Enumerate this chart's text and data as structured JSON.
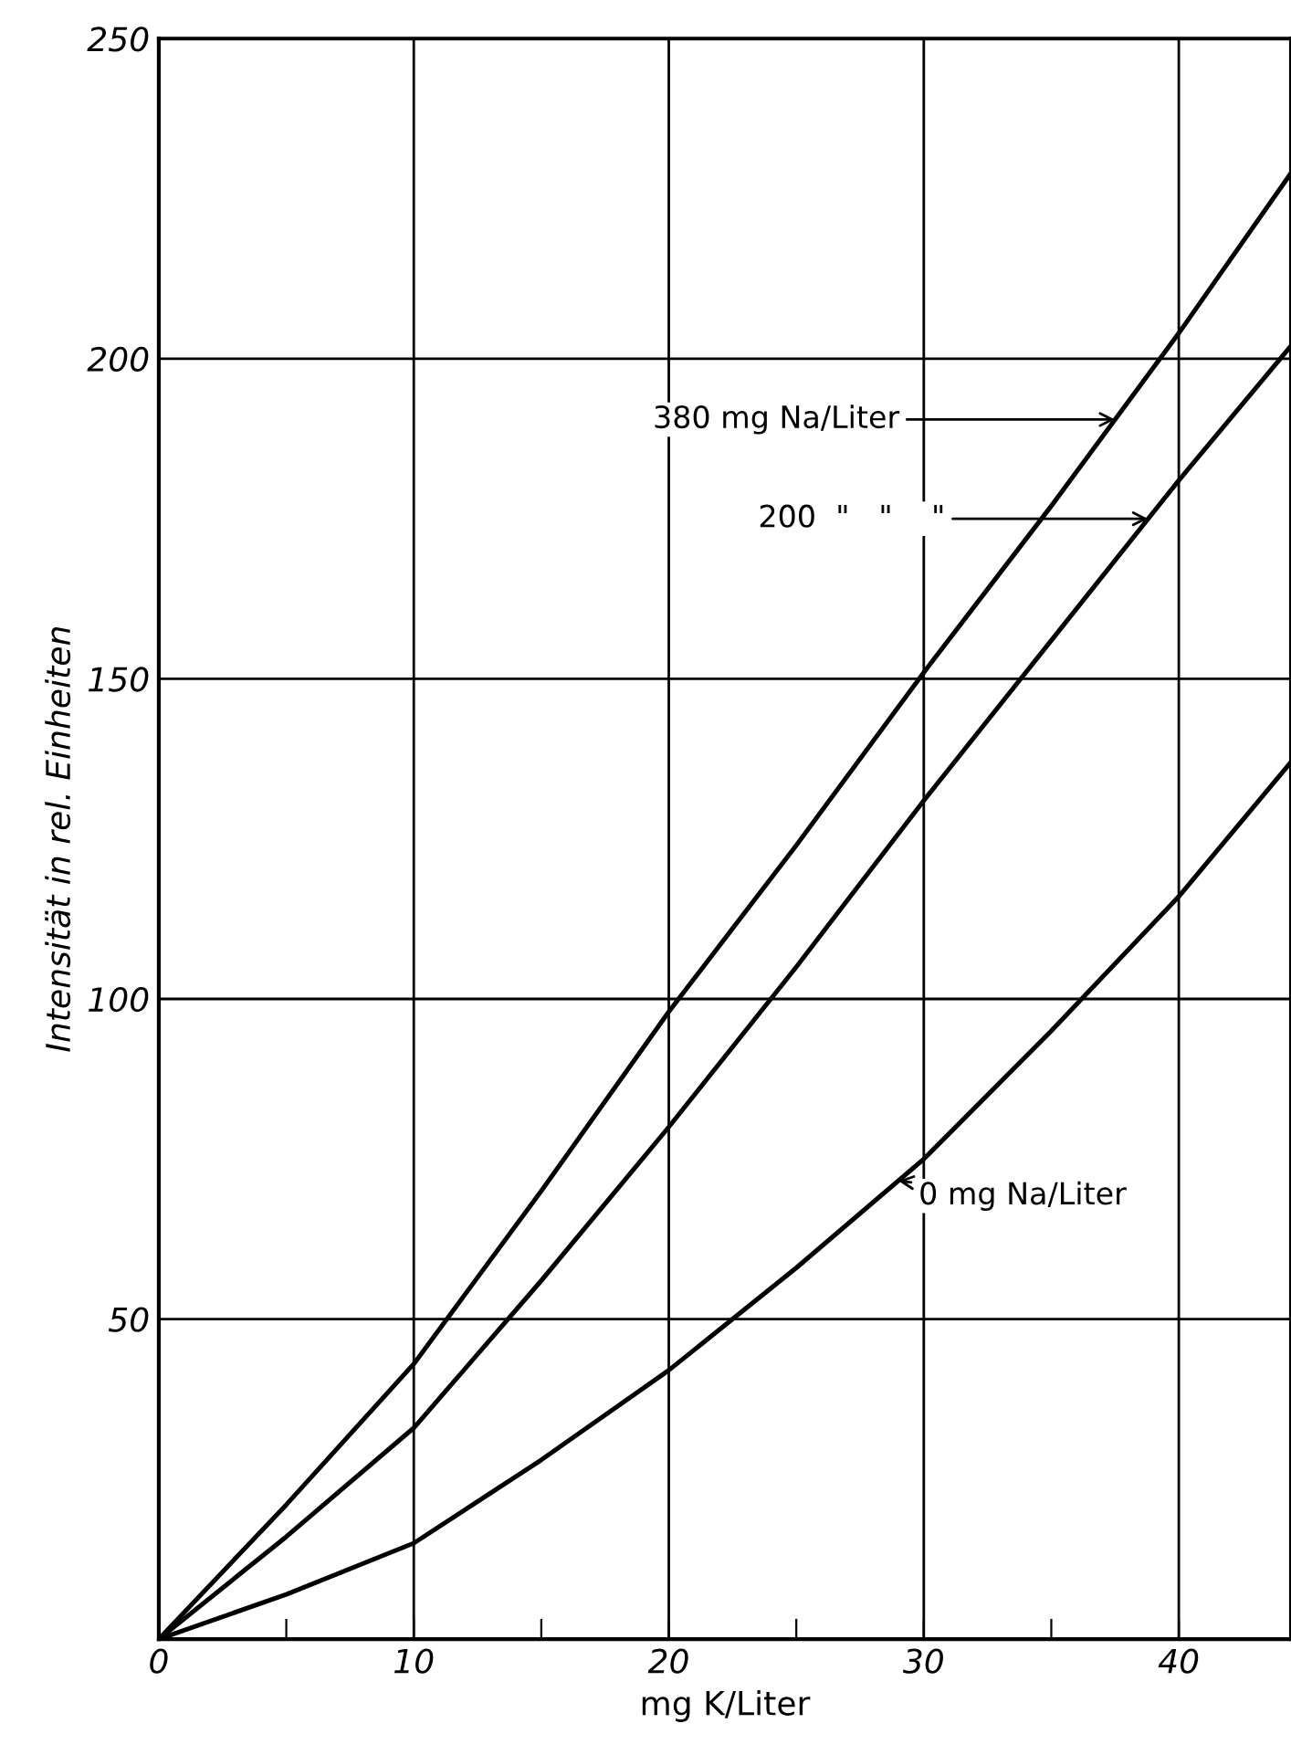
{
  "chart_data": {
    "type": "line",
    "xlabel": "mg K/Liter",
    "ylabel": "Intensität in rel. Einheiten",
    "xlim": [
      0,
      44.4
    ],
    "ylim": [
      0,
      250
    ],
    "xticks": [
      0,
      {
        "value": 5,
        "label": null
      },
      10,
      {
        "value": 15,
        "label": null
      },
      20,
      {
        "value": 25,
        "label": null
      },
      30,
      {
        "value": 35,
        "label": null
      },
      40
    ],
    "yticks": [
      50,
      100,
      150,
      200,
      250
    ],
    "grid": true,
    "line_style": "solid",
    "marker": "none",
    "series": [
      {
        "color": "#000000",
        "x": [
          0,
          5,
          10,
          15,
          20,
          25,
          30,
          35,
          40,
          44.4
        ],
        "values": [
          0,
          21,
          43,
          70,
          98,
          124,
          151,
          177,
          204,
          229
        ]
      },
      {
        "color": "#000000",
        "x": [
          0,
          5,
          10,
          15,
          20,
          25,
          30,
          35,
          40,
          44.4
        ],
        "values": [
          0,
          16,
          33,
          56,
          80,
          105,
          131,
          156,
          181,
          202
        ]
      },
      {
        "color": "#000000",
        "x": [
          0,
          5,
          10,
          15,
          20,
          25,
          30,
          35,
          40,
          44.4
        ],
        "values": [
          0,
          7,
          15,
          28,
          42,
          58,
          75,
          95,
          116,
          137
        ]
      }
    ],
    "annotations": [
      {
        "text": "380 mg Na/Liter",
        "x": 37.5,
        "y": 190.5
      },
      {
        "text": "200  \"   \"    \"",
        "x": 38.8,
        "y": 175
      },
      {
        "text": "0 mg Na/Liter",
        "x": 29,
        "y": 71.6
      }
    ]
  }
}
